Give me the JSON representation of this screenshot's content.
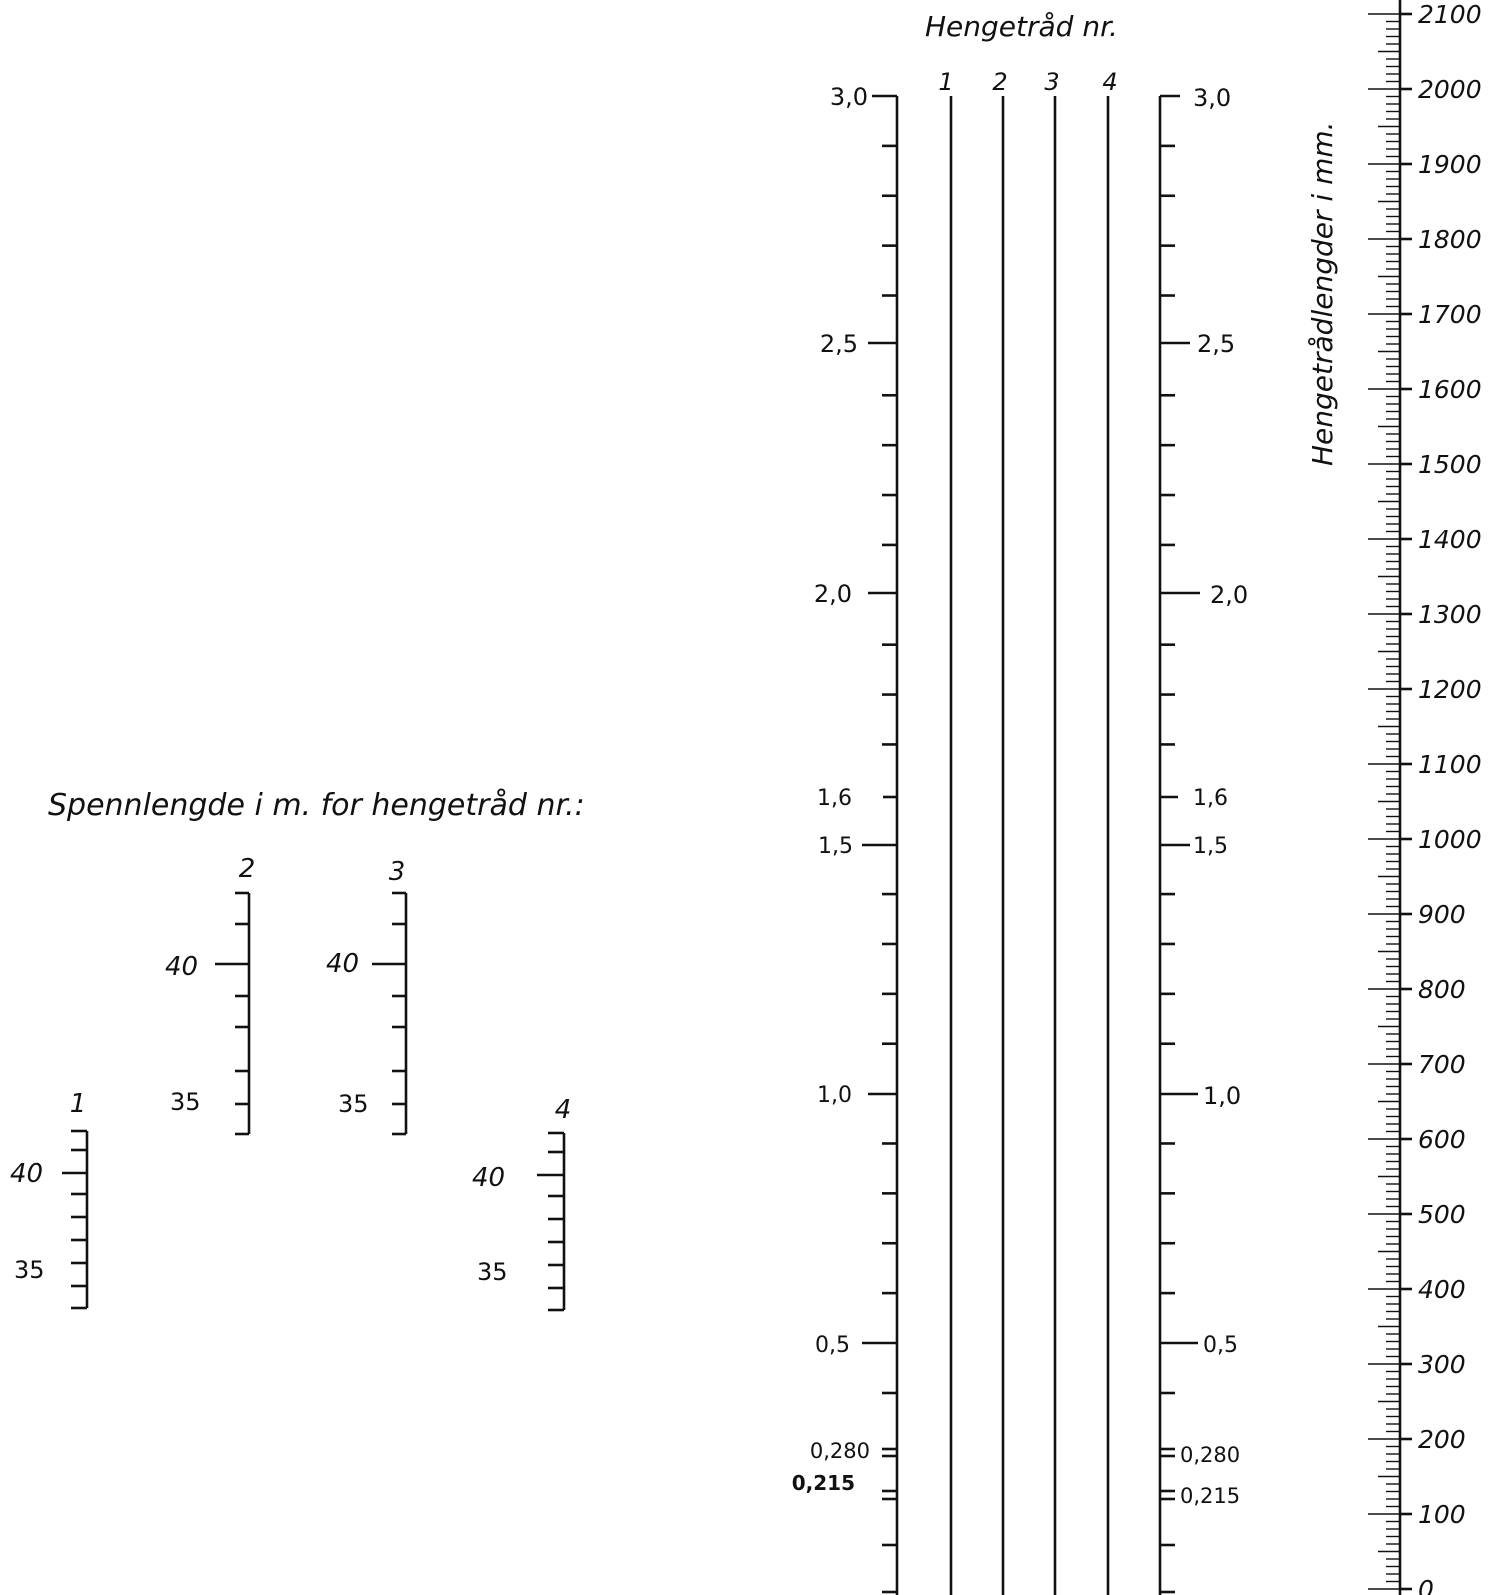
{
  "titles": {
    "top": "Hengetråd  nr.",
    "span": "Spennlengde  i m.  for  hengetråd  nr.:",
    "lengths_axis": "Hengetrådlengder  i  mm."
  },
  "hanger_numbers": [
    "1",
    "2",
    "3",
    "4"
  ],
  "center_scale": {
    "left_labels": [
      "3,0",
      "2,5",
      "2,0",
      "1,6",
      "1,5",
      "1,0",
      "0,5",
      "0,280",
      "0,215"
    ],
    "right_labels": [
      "3,0",
      "2,5",
      "2,0",
      "1,6",
      "1,5",
      "1,0",
      "0,5",
      "0,280",
      "0,215"
    ],
    "values": [
      3.0,
      2.5,
      2.0,
      1.6,
      1.5,
      1.0,
      0.5,
      0.28,
      0.215
    ]
  },
  "length_scale": {
    "labels": [
      "2100",
      "2000",
      "1900",
      "1800",
      "1700",
      "1600",
      "1500",
      "1400",
      "1300",
      "1200",
      "1100",
      "1000",
      "900",
      "800",
      "700",
      "600",
      "500",
      "400",
      "300",
      "200",
      "100",
      "0"
    ],
    "min": 0,
    "max": 2100,
    "unit": "mm"
  },
  "span_scales": [
    {
      "id": "1",
      "label": "1",
      "ticks": [
        "40",
        "35"
      ]
    },
    {
      "id": "2",
      "label": "2",
      "ticks": [
        "40",
        "35"
      ]
    },
    {
      "id": "3",
      "label": "3",
      "ticks": [
        "40",
        "35"
      ]
    },
    {
      "id": "4",
      "label": "4",
      "ticks": [
        "40",
        "35"
      ]
    }
  ]
}
